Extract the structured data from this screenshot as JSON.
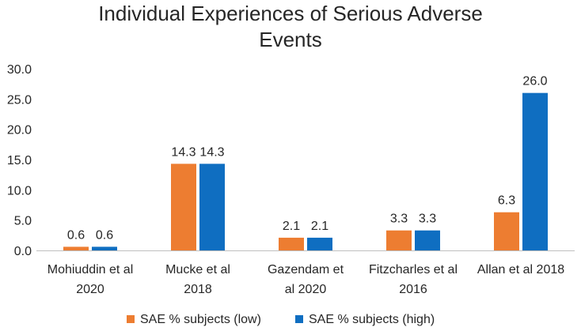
{
  "chart_data": {
    "type": "bar",
    "title_lines": [
      "Individual Experiences of Serious Adverse",
      "Events"
    ],
    "categories": [
      [
        "Mohiuddin et al",
        "2020"
      ],
      [
        "Mucke et al",
        "2018"
      ],
      [
        "Gazendam et",
        "al 2020"
      ],
      [
        "Fitzcharles et al",
        "2016"
      ],
      [
        "Allan et al 2018"
      ]
    ],
    "series": [
      {
        "name": "SAE % subjects (low)",
        "color": "#ED7D31",
        "values": [
          0.6,
          14.3,
          2.1,
          3.3,
          6.3
        ]
      },
      {
        "name": "SAE % subjects (high)",
        "color": "#0F6EC1",
        "values": [
          0.6,
          14.3,
          2.1,
          3.3,
          26.0
        ]
      }
    ],
    "ylim": [
      0,
      30
    ],
    "yticks": [
      0,
      5,
      10,
      15,
      20,
      25,
      30
    ],
    "tick_decimals": 1,
    "label_decimals": 1,
    "xlabel": "",
    "ylabel": "",
    "grid": false,
    "legend_position": "bottom"
  }
}
